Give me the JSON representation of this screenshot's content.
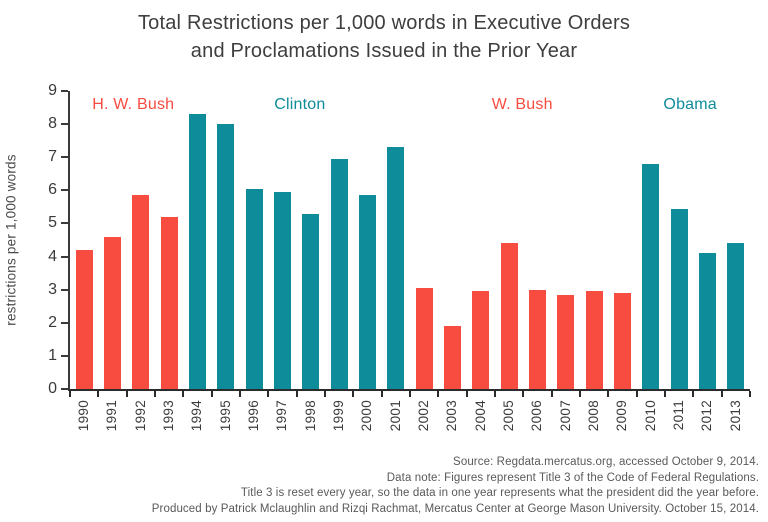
{
  "title": {
    "line1": "Total Restrictions per 1,000 words in Executive Orders",
    "line2": "and Proclamations Issued in the Prior Year"
  },
  "chart_data": {
    "type": "bar",
    "title": "Total Restrictions per 1,000 words in Executive Orders and Proclamations Issued in the Prior Year",
    "xlabel": "",
    "ylabel": "restrictions per 1,000 words",
    "ylim": [
      0,
      9
    ],
    "y_tick_step": 1,
    "grid": false,
    "legend_position": "inline-era-labels",
    "categories": [
      "1990",
      "1991",
      "1992",
      "1993",
      "1994",
      "1995",
      "1996",
      "1997",
      "1998",
      "1999",
      "2000",
      "2001",
      "2002",
      "2003",
      "2004",
      "2005",
      "2006",
      "2007",
      "2008",
      "2009",
      "2010",
      "2011",
      "2012",
      "2013"
    ],
    "values": [
      4.2,
      4.6,
      5.85,
      5.2,
      8.3,
      8.0,
      6.05,
      5.95,
      5.3,
      6.95,
      5.85,
      7.3,
      3.05,
      1.9,
      2.95,
      4.4,
      3.0,
      2.85,
      2.95,
      2.9,
      6.8,
      5.45,
      4.1,
      4.4
    ],
    "eras": [
      {
        "name": "H. W. Bush",
        "start": 1990,
        "end": 1993,
        "color": "#f94c41",
        "label_center_pct": 9.3
      },
      {
        "name": "Clinton",
        "start": 1994,
        "end": 2001,
        "color": "#0e8c9a",
        "label_center_pct": 33.8
      },
      {
        "name": "W. Bush",
        "start": 2002,
        "end": 2009,
        "color": "#f94c41",
        "label_center_pct": 66.5
      },
      {
        "name": "Obama",
        "start": 2010,
        "end": 2013,
        "color": "#0e8c9a",
        "label_center_pct": 91.2
      }
    ]
  },
  "y_axis": {
    "ticks": [
      0,
      1,
      2,
      3,
      4,
      5,
      6,
      7,
      8,
      9
    ]
  },
  "footer": {
    "lines": [
      "Source: Regdata.mercatus.org, accessed October 9, 2014.",
      "Data note: Figures represent Title 3 of the Code of Federal Regulations.",
      "Title 3 is reset every year, so the data in one year represents what the president did the year before.",
      "Produced by Patrick Mclaughlin and Rizqi Rachmat, Mercatus Center at George Mason University. October 15, 2014."
    ]
  },
  "colors": {
    "republican_red": "#f94c41",
    "democrat_teal": "#0e8c9a",
    "axis_text": "#3a3a3a",
    "footer_text": "#58595b"
  }
}
